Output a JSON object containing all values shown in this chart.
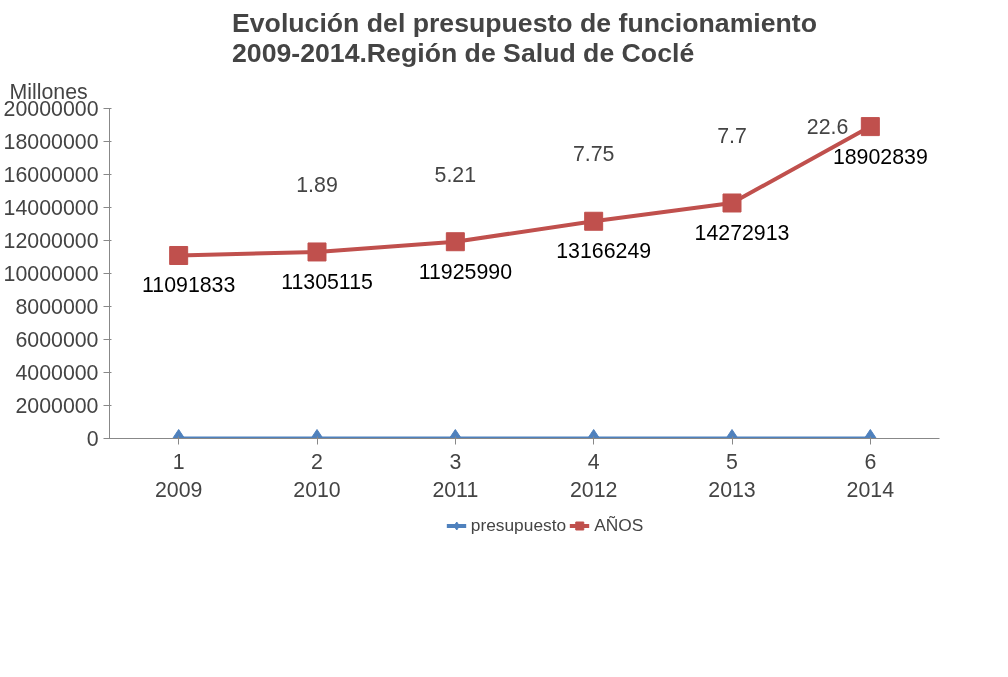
{
  "chart_data": {
    "type": "line",
    "title": "Evolución del presupuesto de funcionamiento\n2009-2014.Región de Salud de Coclé",
    "ylabel": "Millones",
    "categories": [
      "1\n2009",
      "2\n2010",
      "3\n2011",
      "4\n2012",
      "5\n2013",
      "6\n2014"
    ],
    "series": [
      {
        "name": "presupuesto",
        "color": "#4f81bd",
        "marker": "diamond",
        "values": [
          0,
          0,
          0,
          0,
          0,
          0
        ]
      },
      {
        "name": "AÑOS",
        "color": "#c0504d",
        "marker": "square",
        "values": [
          11091833,
          11305115,
          11925990,
          13166249,
          14272913,
          18902839
        ],
        "value_labels": [
          "11091833",
          "11305115",
          "11925990",
          "13166249",
          "14272913",
          "18902839"
        ]
      }
    ],
    "annotations": [
      "1.89",
      "5.21",
      "7.75",
      "7.7",
      "22.6"
    ],
    "ylim": [
      0,
      20000000
    ],
    "yticks": [
      0,
      2000000,
      4000000,
      6000000,
      8000000,
      10000000,
      12000000,
      14000000,
      16000000,
      18000000,
      20000000
    ],
    "grid": false,
    "legend": "bottom"
  }
}
